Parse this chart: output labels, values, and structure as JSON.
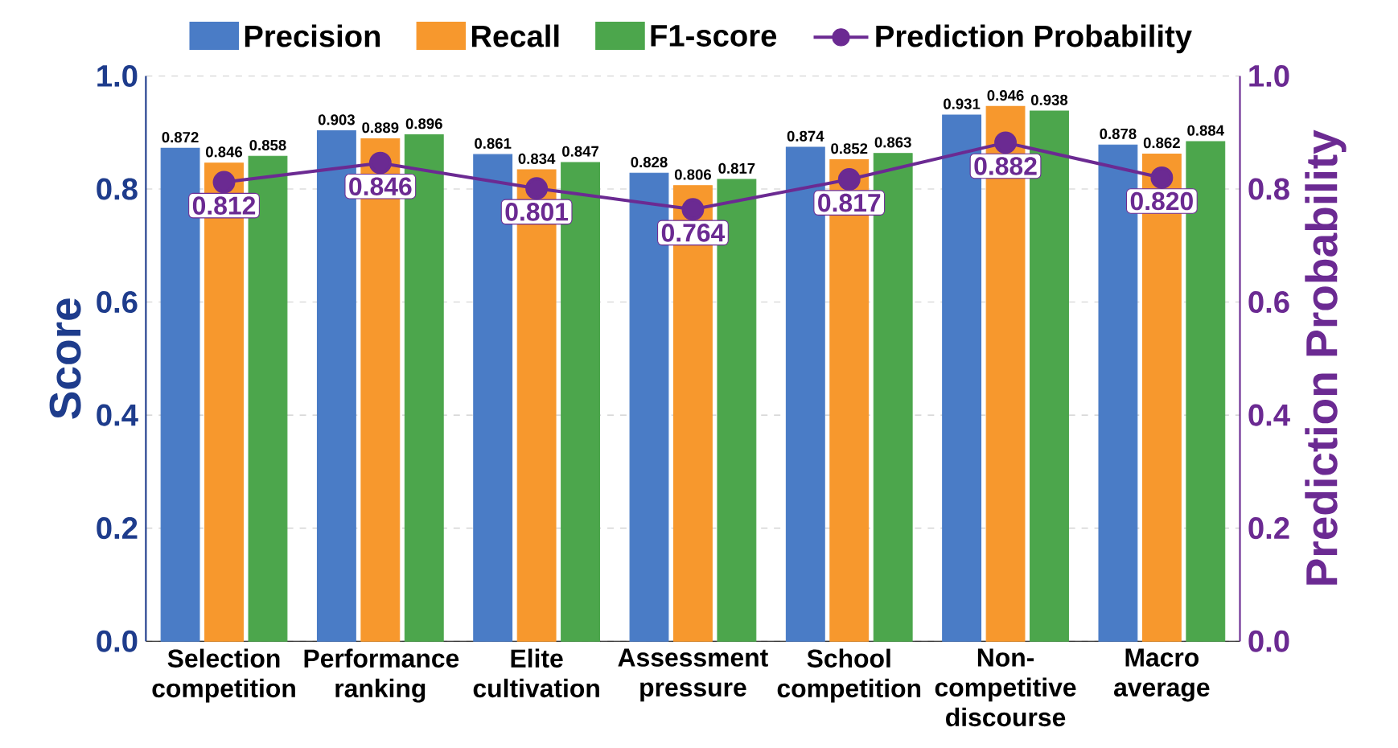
{
  "chart_data": {
    "type": "bar",
    "categories": [
      "Selection competition",
      "Performance ranking",
      "Elite cultivation",
      "Assessment pressure",
      "School competition",
      "Non-competitive discourse",
      "Macro average"
    ],
    "ylabel": "Score",
    "y2label": "Prediction Probability",
    "ylim": [
      0,
      1
    ],
    "yticks": [
      {
        "value": 0,
        "label": "0.0"
      },
      0.2,
      0.4,
      0.6,
      0.8,
      {
        "value": 1,
        "label": "1.0"
      }
    ],
    "y2lim": [
      0,
      1
    ],
    "y2ticks": [
      {
        "value": 0,
        "label": "0.0"
      },
      0.2,
      0.4,
      0.6,
      0.8,
      {
        "value": 1,
        "label": "1.0"
      }
    ],
    "grid": "y",
    "legend": "top",
    "data_labels": true,
    "series": [
      {
        "name": "Precision",
        "color": "#4a7cc6",
        "values": [
          0.872,
          0.903,
          0.861,
          0.828,
          0.874,
          0.931,
          0.878
        ]
      },
      {
        "name": "Recall",
        "color": "#f7982d",
        "values": [
          0.846,
          0.889,
          0.834,
          0.806,
          0.852,
          0.946,
          0.862
        ]
      },
      {
        "name": "F1-score",
        "color": "#4ca64c",
        "values": [
          0.858,
          0.896,
          0.847,
          0.817,
          0.863,
          0.938,
          0.884
        ]
      },
      {
        "name": "Prediction Probability",
        "type": "line",
        "axis": "y2",
        "color": "#6b2a92",
        "marker": "circle",
        "line_style": "solid",
        "values": [
          0.812,
          0.846,
          0.801,
          0.764,
          0.817,
          0.882,
          0.82
        ],
        "value_labels": [
          "0.812",
          "0.846",
          "0.801",
          "0.764",
          "0.817",
          "0.882",
          "0.820"
        ]
      }
    ]
  }
}
